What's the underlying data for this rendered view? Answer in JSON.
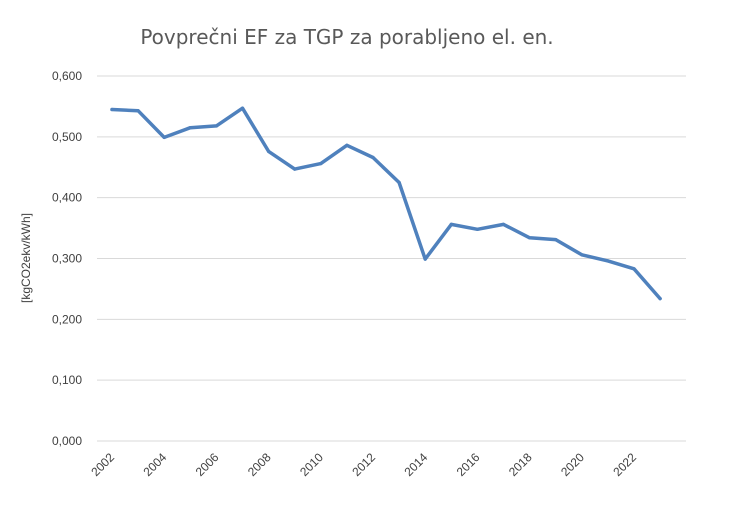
{
  "chart_data": {
    "type": "line",
    "title": "Povprečni EF za TGP za porabljeno el. en.",
    "xlabel": "",
    "ylabel": "[kgCO2ekv/kWh]",
    "ylim": [
      0,
      0.6
    ],
    "yticks": [
      "0,000",
      "0,100",
      "0,200",
      "0,300",
      "0,400",
      "0,500",
      "0,600"
    ],
    "grid": true,
    "legend": "none",
    "x": [
      2002,
      2003,
      2004,
      2005,
      2006,
      2007,
      2008,
      2009,
      2010,
      2011,
      2012,
      2013,
      2014,
      2015,
      2016,
      2017,
      2018,
      2019,
      2020,
      2021,
      2022,
      2023
    ],
    "xticks": [
      "2002",
      "2004",
      "2006",
      "2008",
      "2010",
      "2012",
      "2014",
      "2016",
      "2018",
      "2020",
      "2022"
    ],
    "series": [
      {
        "name": "",
        "color": "#4f81bd",
        "values": [
          0.545,
          0.543,
          0.499,
          0.515,
          0.518,
          0.547,
          0.476,
          0.447,
          0.456,
          0.486,
          0.466,
          0.425,
          0.299,
          0.356,
          0.348,
          0.356,
          0.334,
          0.331,
          0.306,
          0.296,
          0.283,
          0.234
        ]
      }
    ]
  }
}
